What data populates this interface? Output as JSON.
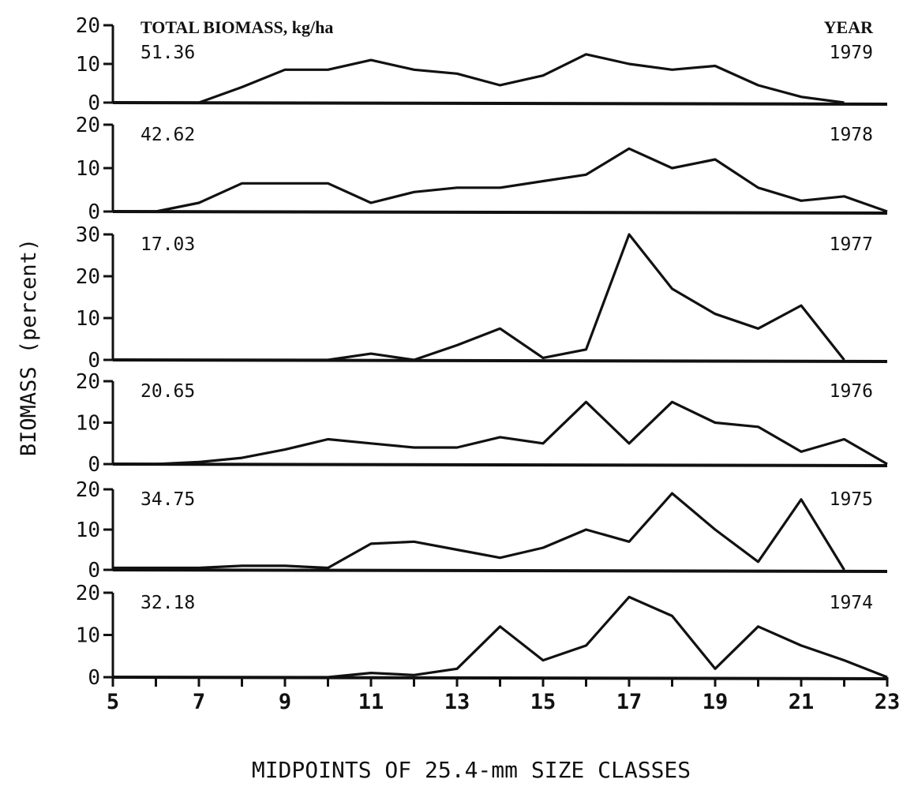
{
  "chart_data": {
    "type": "line",
    "ylabel": "BIOMASS (percent)",
    "xlabel": "MIDPOINTS OF 25.4-mm SIZE CLASSES",
    "header_left": "TOTAL BIOMASS, kg/ha",
    "header_right": "YEAR",
    "x_ticks": [
      5,
      7,
      9,
      11,
      13,
      15,
      17,
      19,
      21,
      23
    ],
    "xlim": [
      5,
      23
    ],
    "panels": [
      {
        "year": "1979",
        "total": "51.36",
        "ylim": [
          0,
          20
        ],
        "y_ticks": [
          0,
          10,
          20
        ],
        "x": [
          5,
          6,
          7,
          8,
          9,
          10,
          11,
          12,
          13,
          14,
          15,
          16,
          17,
          18,
          19,
          20,
          21,
          22
        ],
        "y": [
          0,
          0,
          0,
          4,
          8.5,
          8.5,
          11,
          8.5,
          7.5,
          4.5,
          7,
          12.5,
          10,
          8.5,
          9.5,
          4.5,
          1.5,
          0
        ]
      },
      {
        "year": "1978",
        "total": "42.62",
        "ylim": [
          0,
          20
        ],
        "y_ticks": [
          0,
          10,
          20
        ],
        "x": [
          5,
          6,
          7,
          8,
          9,
          10,
          11,
          12,
          13,
          14,
          15,
          16,
          17,
          18,
          19,
          20,
          21,
          22,
          23
        ],
        "y": [
          0,
          0,
          2,
          6.5,
          6.5,
          6.5,
          2,
          4.5,
          5.5,
          5.5,
          7,
          8.5,
          14.5,
          10,
          12,
          5.5,
          2.5,
          3.5,
          0
        ]
      },
      {
        "year": "1977",
        "total": "17.03",
        "ylim": [
          0,
          30
        ],
        "y_ticks": [
          0,
          10,
          20,
          30
        ],
        "x": [
          5,
          6,
          7,
          8,
          9,
          10,
          11,
          12,
          13,
          14,
          15,
          16,
          17,
          18,
          19,
          20,
          21,
          22
        ],
        "y": [
          0,
          0,
          0,
          0,
          0,
          0,
          1.5,
          0,
          3.5,
          7.5,
          0.5,
          2.5,
          30,
          17,
          11,
          7.5,
          13,
          0
        ]
      },
      {
        "year": "1976",
        "total": "20.65",
        "ylim": [
          0,
          20
        ],
        "y_ticks": [
          0,
          10,
          20
        ],
        "x": [
          5,
          6,
          7,
          8,
          9,
          10,
          11,
          12,
          13,
          14,
          15,
          16,
          17,
          18,
          19,
          20,
          21,
          22,
          23
        ],
        "y": [
          0,
          0,
          0.5,
          1.5,
          3.5,
          6,
          5,
          4,
          4,
          6.5,
          5,
          15,
          5,
          15,
          10,
          9,
          3,
          6,
          0
        ]
      },
      {
        "year": "1975",
        "total": "34.75",
        "ylim": [
          0,
          20
        ],
        "y_ticks": [
          0,
          10,
          20
        ],
        "x": [
          5,
          6,
          7,
          8,
          9,
          10,
          11,
          12,
          13,
          14,
          15,
          16,
          17,
          18,
          19,
          20,
          21,
          22
        ],
        "y": [
          0.5,
          0.5,
          0.5,
          1,
          1,
          0.5,
          6.5,
          7,
          5,
          3,
          5.5,
          10,
          7,
          19,
          10,
          2,
          17.5,
          0
        ]
      },
      {
        "year": "1974",
        "total": "32.18",
        "ylim": [
          0,
          20
        ],
        "y_ticks": [
          0,
          10,
          20
        ],
        "x": [
          5,
          6,
          7,
          8,
          9,
          10,
          11,
          12,
          13,
          14,
          15,
          16,
          17,
          18,
          19,
          20,
          21,
          22,
          23
        ],
        "y": [
          0,
          0,
          0,
          0,
          0,
          0,
          1,
          0.5,
          2,
          12,
          4,
          7.5,
          19,
          14.5,
          2,
          12,
          7.5,
          4,
          0
        ]
      }
    ]
  }
}
